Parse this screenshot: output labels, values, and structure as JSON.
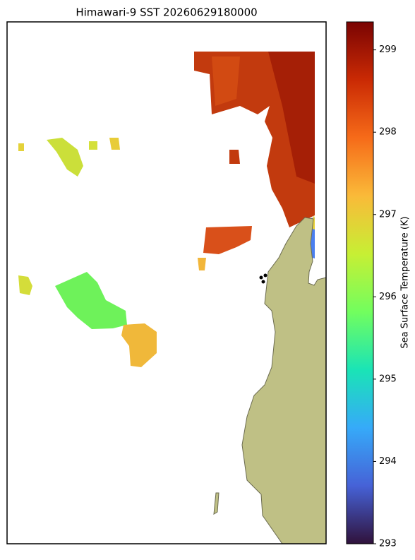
{
  "map": {
    "title": "Himawari-9 SST 20260629180000",
    "colorbar": {
      "label": "Sea Surface Temperature (K)",
      "lim": [
        293,
        299.34
      ],
      "ticks": [
        293,
        294,
        295,
        296,
        297,
        298,
        299
      ],
      "colors": [
        "#30123b",
        "#4662d7",
        "#36aaf9",
        "#1ae4b6",
        "#72fe5e",
        "#c7ef34",
        "#faba39",
        "#f66b19",
        "#ca2a04",
        "#7a0403"
      ]
    }
  }
}
